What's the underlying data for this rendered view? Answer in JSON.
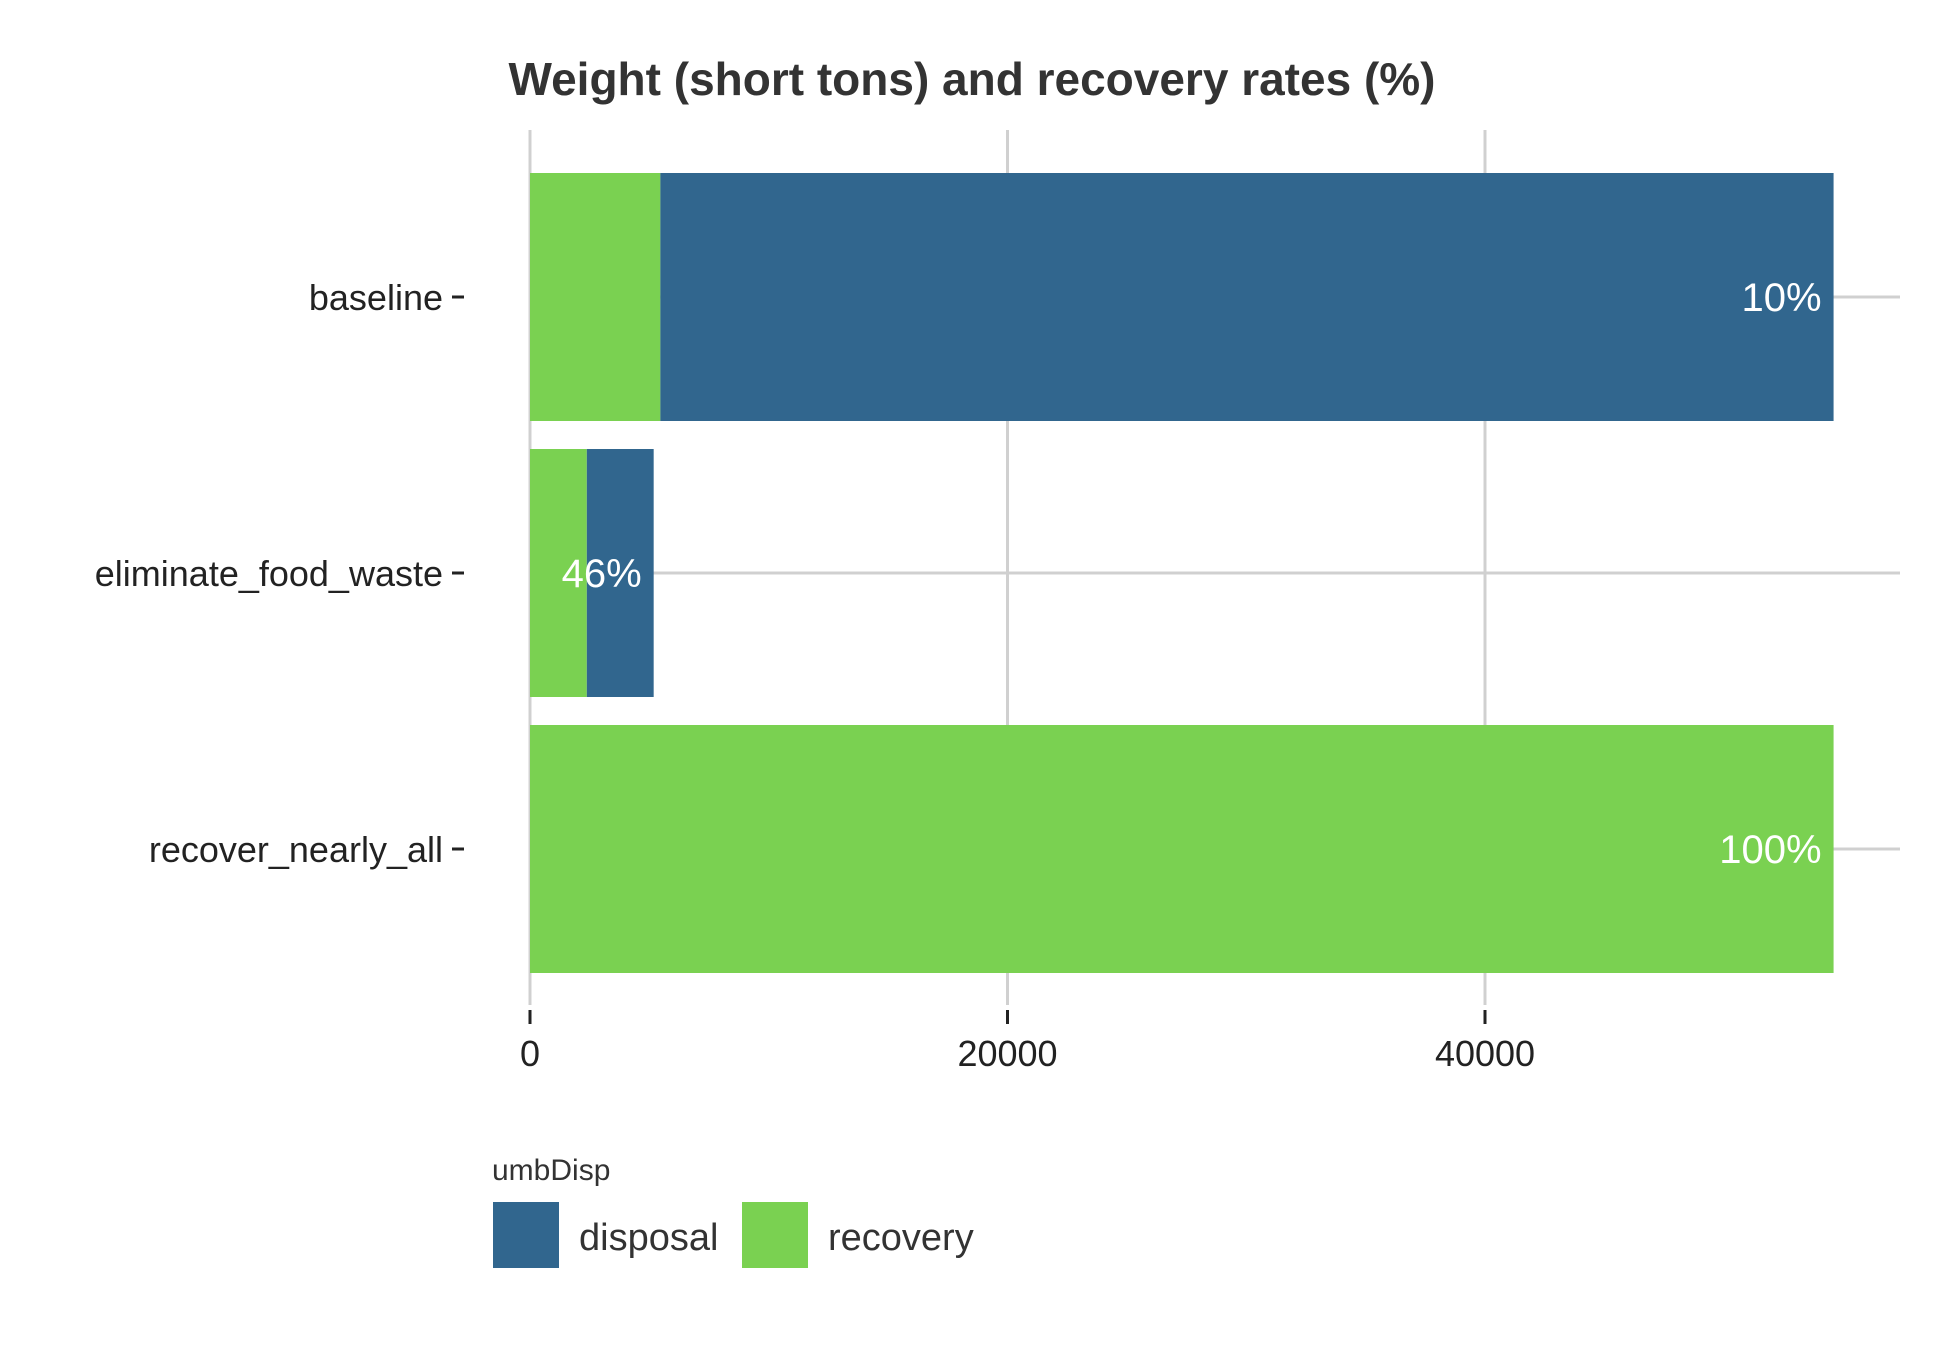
{
  "chart_data": {
    "type": "bar",
    "orientation": "horizontal",
    "stacked": true,
    "title": "Weight (short tons) and recovery rates (%)",
    "xlabel": "",
    "ylabel": "",
    "categories": [
      "baseline",
      "eliminate_food_waste",
      "recover_nearly_all"
    ],
    "series": [
      {
        "name": "recovery",
        "color": "#7AD151",
        "values": [
          5460,
          2380,
          54600
        ]
      },
      {
        "name": "disposal",
        "color": "#31668E",
        "values": [
          49140,
          2800,
          0
        ]
      }
    ],
    "rate_labels": [
      "10%",
      "46%",
      "100%"
    ],
    "xlim": [
      0,
      57300
    ],
    "xticks": [
      0,
      20000,
      40000
    ],
    "xtick_labels": [
      "0",
      "20000",
      "40000"
    ],
    "grid": true,
    "legend": {
      "title": "umbDisp",
      "position": "bottom",
      "entries": [
        {
          "name": "disposal",
          "color": "#31668E"
        },
        {
          "name": "recovery",
          "color": "#7AD151"
        }
      ]
    }
  }
}
